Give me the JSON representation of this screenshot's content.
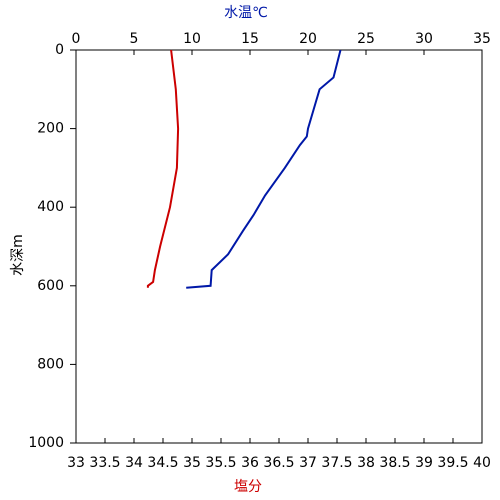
{
  "chart_data": {
    "type": "line",
    "x2label": "水温℃",
    "xlabel": "塩分",
    "ylabel": "水深m",
    "x2lim": [
      0,
      35
    ],
    "x2ticks": [
      0,
      5,
      10,
      15,
      20,
      25,
      30,
      35
    ],
    "xlim": [
      33,
      40
    ],
    "xticks": [
      33,
      33.5,
      34,
      34.5,
      35,
      35.5,
      36,
      36.5,
      37,
      37.5,
      38,
      38.5,
      39,
      39.5,
      40
    ],
    "ylim": [
      0,
      1000
    ],
    "yticks": [
      0,
      200,
      400,
      600,
      800,
      1000
    ],
    "yinverted": true,
    "series": [
      {
        "color": "#0018a8",
        "axis": "x2",
        "label_color": "#0018a8",
        "depth": [
          0,
          70,
          100,
          130,
          200,
          220,
          242,
          300,
          370,
          420,
          460,
          520,
          560,
          600,
          605
        ],
        "values": [
          22.8,
          22.2,
          21.0,
          20.7,
          20.0,
          19.9,
          19.3,
          18.0,
          16.3,
          15.3,
          14.4,
          13.1,
          11.7,
          11.6,
          9.5
        ]
      },
      {
        "color": "#cc0000",
        "axis": "x",
        "label_color": "#cc0000",
        "depth": [
          0,
          100,
          200,
          300,
          400,
          500,
          560,
          590,
          600,
          605
        ],
        "values": [
          34.64,
          34.72,
          34.76,
          34.74,
          34.62,
          34.45,
          34.36,
          34.33,
          34.24,
          34.24
        ]
      }
    ]
  }
}
